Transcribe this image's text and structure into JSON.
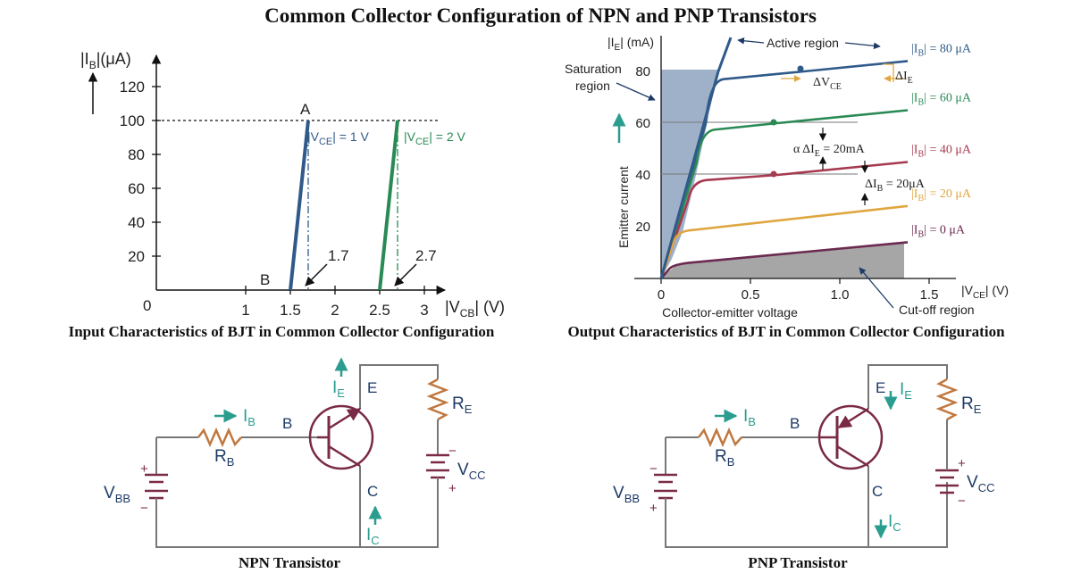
{
  "title": "Common Collector Configuration of NPN and PNP Transistors",
  "colors": {
    "blue_curve": "#2f5a8a",
    "green_curve": "#2a8a55",
    "red_curve": "#a63a50",
    "orange_curve": "#e0a640",
    "purple_curve": "#6b2a50",
    "saturation": "#9fb1c9",
    "cutoff": "#a6a6a6",
    "resistor": "#c07840",
    "transistor": "#7a2a46",
    "wire": "#777777",
    "arrow_teal": "#2a9d8f",
    "label_navy": "#1d3a66"
  },
  "input_chart": {
    "caption": "Input Characteristics of BJT in Common Collector Configuration",
    "y_label_main": "|I",
    "y_label_sub": "B",
    "y_label_unit": "|(μA)",
    "x_label_main": "|V",
    "x_label_sub": "CB",
    "x_label_unit": "| (V)",
    "origin": "0",
    "point_a": "A",
    "point_b": "B",
    "curve1_main": "|V",
    "curve1_sub": "CE",
    "curve1_rest": "| = 1 V",
    "curve2_main": "|V",
    "curve2_sub": "CE",
    "curve2_rest": "| = 2 V",
    "marker1": "1.7",
    "marker2": "2.7"
  },
  "output_chart": {
    "caption": "Output Characteristics of BJT in Common Collector Configuration",
    "y_unit_main": "|I",
    "y_unit_sub": "E",
    "y_unit_rest": "| (mA)",
    "y_title": "Emitter current",
    "x_unit_main": "|V",
    "x_unit_sub": "CE",
    "x_unit_rest": "| (V)",
    "x_title": "Collector-emitter voltage",
    "active_region": "Active region",
    "saturation_region_1": "Saturation",
    "saturation_region_2": "region",
    "cutoff_region": "Cut-off region",
    "delta_vce_main": "ΔV",
    "delta_vce_sub": "CE",
    "delta_ie_main": "ΔI",
    "delta_ie_sub": "E",
    "alpha_main": "α ΔI",
    "alpha_sub": "E",
    "alpha_rest": " = 20mA",
    "delta_ib_main": "ΔI",
    "delta_ib_sub": "B",
    "delta_ib_rest": " = 20μA",
    "curve_label_main": "|I",
    "curve_label_sub": "B"
  },
  "chart_data": [
    {
      "type": "line",
      "title": "Input Characteristics of BJT in Common Collector Configuration",
      "xlabel": "|VCB| (V)",
      "ylabel": "|IB|(μA)",
      "x_ticks": [
        "0",
        "1",
        "1.5",
        "2",
        "2.5",
        "3"
      ],
      "y_ticks": [
        "20",
        "40",
        "60",
        "80",
        "100",
        "120"
      ],
      "xlim": [
        0,
        3.2
      ],
      "ylim": [
        0,
        130
      ],
      "series": [
        {
          "name": "|VCE| = 1 V",
          "x": [
            1.5,
            1.7
          ],
          "y": [
            0,
            100
          ]
        },
        {
          "name": "|VCE| = 2 V",
          "x": [
            2.5,
            2.7
          ],
          "y": [
            0,
            100
          ]
        }
      ],
      "annotations": [
        "A",
        "B",
        "1.7",
        "2.7"
      ]
    },
    {
      "type": "line",
      "title": "Output Characteristics of BJT in Common Collector Configuration",
      "xlabel": "|VCE| (V)",
      "ylabel": "|IE| (mA)",
      "x_ticks": [
        "0",
        "0.5",
        "1.0",
        "1.5"
      ],
      "y_ticks": [
        "20",
        "40",
        "60",
        "80"
      ],
      "xlim": [
        0,
        1.65
      ],
      "ylim": [
        0,
        90
      ],
      "series": [
        {
          "name": "|IB| = 80 μA",
          "x": [
            0,
            0.25,
            0.35,
            0.8,
            1.38
          ],
          "y": [
            0,
            60,
            77,
            80,
            84
          ]
        },
        {
          "name": "|IB| = 60 μA",
          "x": [
            0,
            0.2,
            0.3,
            0.65,
            1.38
          ],
          "y": [
            0,
            45,
            57.5,
            60,
            65
          ]
        },
        {
          "name": "|IB| = 40 μA",
          "x": [
            0,
            0.15,
            0.25,
            0.65,
            1.38
          ],
          "y": [
            0,
            30,
            38,
            40,
            45
          ]
        },
        {
          "name": "|IB| = 20 μA",
          "x": [
            0,
            0.07,
            0.15,
            1.38
          ],
          "y": [
            0,
            14,
            18.5,
            28
          ]
        },
        {
          "name": "|IB| = 0 μA",
          "x": [
            0,
            0.05,
            0.15,
            1.38
          ],
          "y": [
            0,
            4,
            6,
            14
          ]
        }
      ],
      "annotations": [
        "Active region",
        "Saturation region",
        "Cut-off region",
        "ΔVCE",
        "ΔIE",
        "α ΔIE = 20mA",
        "ΔIB = 20μA"
      ]
    }
  ],
  "npn": {
    "caption": "NPN Transistor",
    "ie_main": "I",
    "ie_sub": "E",
    "e_label": "E",
    "re_main": "R",
    "re_sub": "E",
    "ib_main": "I",
    "ib_sub": "B",
    "b_label": "B",
    "rb_main": "R",
    "rb_sub": "B",
    "vcc_main": "V",
    "vcc_sub": "CC",
    "vbb_main": "V",
    "vbb_sub": "BB",
    "c_label": "C",
    "ic_main": "I",
    "ic_sub": "C",
    "plus": "+",
    "minus": "−"
  },
  "pnp": {
    "caption": "PNP Transistor",
    "ie_main": "I",
    "ie_sub": "E",
    "e_label": "E",
    "re_main": "R",
    "re_sub": "E",
    "ib_main": "I",
    "ib_sub": "B",
    "b_label": "B",
    "rb_main": "R",
    "rb_sub": "B",
    "vcc_main": "V",
    "vcc_sub": "CC",
    "vbb_main": "V",
    "vbb_sub": "BB",
    "c_label": "C",
    "ic_main": "I",
    "ic_sub": "C",
    "plus": "+",
    "minus": "−"
  }
}
